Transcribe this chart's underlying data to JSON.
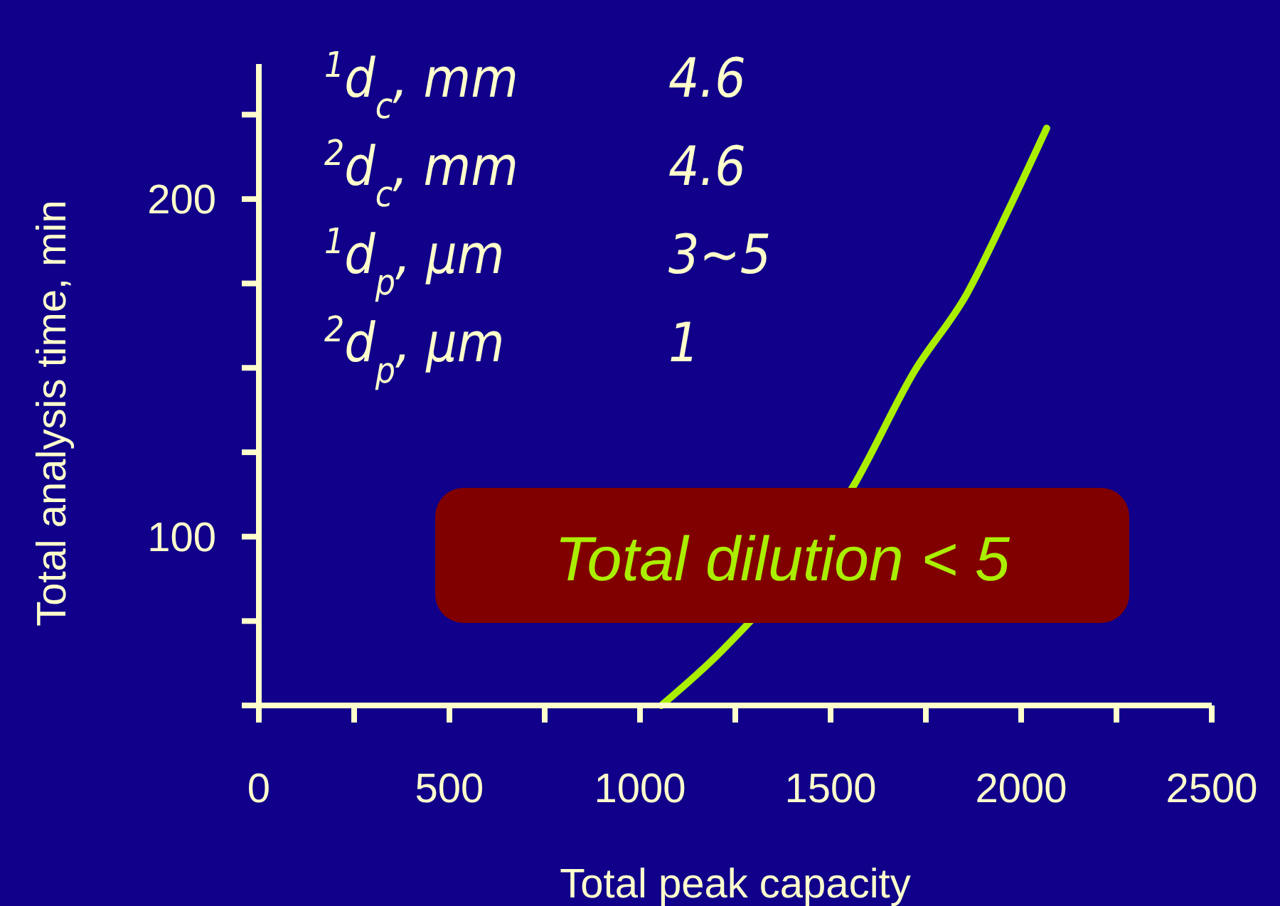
{
  "chart_data": {
    "type": "line",
    "xlabel": "Total peak capacity",
    "ylabel": "Total analysis time, min",
    "x": [
      1056,
      1213,
      1560,
      1720,
      1858,
      1959,
      2067
    ],
    "series": [
      {
        "color": "#aaee00",
        "values": [
          50,
          66,
          115,
          149,
          172,
          195,
          221
        ]
      }
    ],
    "xlim": [
      0,
      2500
    ],
    "xticks": [
      0,
      {
        "value": 250,
        "label": null
      },
      500,
      {
        "value": 750,
        "label": null
      },
      1000,
      {
        "value": 1250,
        "label": null
      },
      1500,
      {
        "value": 1750,
        "label": null
      },
      2000,
      {
        "value": 2250,
        "label": null
      },
      2500
    ],
    "ylim": [
      50,
      240
    ],
    "yticks": [
      {
        "value": 50,
        "label": null
      },
      {
        "value": 75,
        "label": null
      },
      100,
      {
        "value": 125,
        "label": null
      },
      {
        "value": 150,
        "label": null
      },
      {
        "value": 175,
        "label": null
      },
      200,
      {
        "value": 225,
        "label": null
      }
    ],
    "grid": false,
    "marker": "none",
    "line_style": "solid",
    "annotations": [
      "$^{1}$d$_{c}$, mm",
      "4.6",
      "$^{2}$d$_{c}$, mm",
      "4.6",
      "$^{1}$d$_{p}$, µm",
      "3~5",
      "$^{2}$d$_{p}$, µm",
      "1",
      "Total dilution < 5"
    ]
  }
}
